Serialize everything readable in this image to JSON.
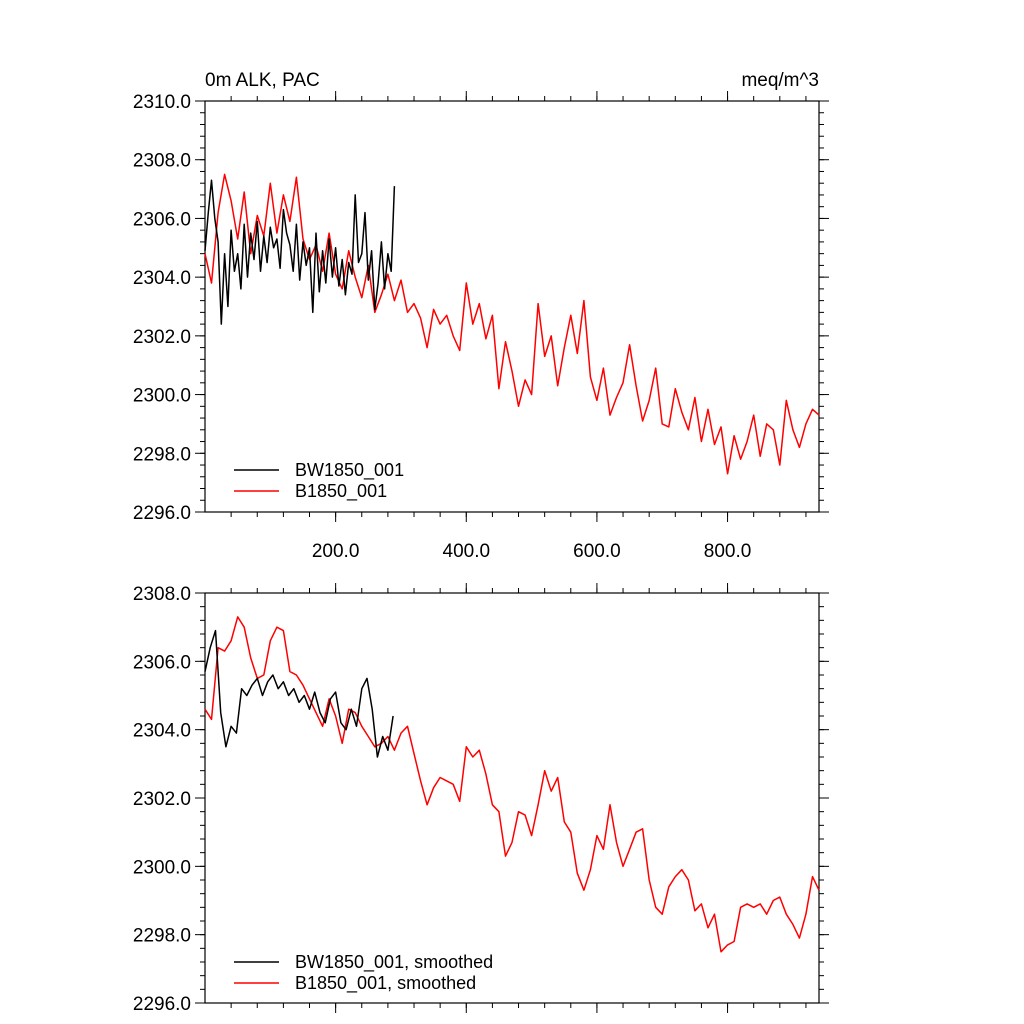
{
  "chart_data": [
    {
      "type": "line",
      "title": "0m ALK, PAC",
      "units": "meq/m^3",
      "xlim": [
        0,
        940
      ],
      "ylim": [
        2296.0,
        2310.0
      ],
      "x_ticks": [
        200,
        400,
        600,
        800
      ],
      "x_tick_labels": [
        "200.0",
        "400.0",
        "600.0",
        "800.0"
      ],
      "y_ticks": [
        2296,
        2298,
        2300,
        2302,
        2304,
        2306,
        2308,
        2310
      ],
      "y_tick_labels": [
        "2296.0",
        "2298.0",
        "2300.0",
        "2302.0",
        "2304.0",
        "2306.0",
        "2308.0",
        "2310.0"
      ],
      "legend_position": "bottom-left",
      "series": [
        {
          "name": "BW1850_001",
          "color": "#000000",
          "x": [
            0,
            5,
            10,
            15,
            20,
            25,
            30,
            35,
            40,
            45,
            50,
            55,
            60,
            65,
            70,
            75,
            80,
            85,
            90,
            95,
            100,
            105,
            110,
            115,
            120,
            125,
            130,
            135,
            140,
            145,
            150,
            155,
            160,
            165,
            170,
            175,
            180,
            185,
            190,
            195,
            200,
            205,
            210,
            215,
            220,
            225,
            230,
            235,
            240,
            245,
            250,
            255,
            260,
            265,
            270,
            275,
            280,
            285,
            290
          ],
          "values": [
            2304.9,
            2306.2,
            2307.3,
            2306.0,
            2305.2,
            2302.4,
            2304.8,
            2303.0,
            2305.6,
            2304.2,
            2304.8,
            2303.6,
            2305.8,
            2304.0,
            2305.5,
            2304.6,
            2305.9,
            2304.2,
            2305.4,
            2304.5,
            2305.7,
            2305.0,
            2305.3,
            2304.3,
            2306.3,
            2305.5,
            2305.1,
            2304.2,
            2305.8,
            2303.9,
            2305.2,
            2304.4,
            2305.0,
            2302.8,
            2305.5,
            2303.5,
            2304.9,
            2303.8,
            2305.3,
            2304.0,
            2305.0,
            2303.7,
            2304.6,
            2303.4,
            2304.5,
            2304.1,
            2306.8,
            2304.5,
            2304.8,
            2306.2,
            2303.9,
            2304.9,
            2302.9,
            2303.8,
            2305.2,
            2303.6,
            2304.8,
            2304.2,
            2307.1
          ]
        },
        {
          "name": "B1850_001",
          "color": "#ff0000",
          "x": [
            0,
            10,
            20,
            30,
            40,
            50,
            60,
            70,
            80,
            90,
            100,
            110,
            120,
            130,
            140,
            150,
            160,
            170,
            180,
            190,
            200,
            210,
            220,
            230,
            240,
            250,
            260,
            270,
            280,
            290,
            300,
            310,
            320,
            330,
            340,
            350,
            360,
            370,
            380,
            390,
            400,
            410,
            420,
            430,
            440,
            450,
            460,
            470,
            480,
            490,
            500,
            510,
            520,
            530,
            540,
            550,
            560,
            570,
            580,
            590,
            600,
            610,
            620,
            630,
            640,
            650,
            660,
            670,
            680,
            690,
            700,
            710,
            720,
            730,
            740,
            750,
            760,
            770,
            780,
            790,
            800,
            810,
            820,
            830,
            840,
            850,
            860,
            870,
            880,
            890,
            900,
            910,
            920,
            930,
            940
          ],
          "values": [
            2304.8,
            2303.8,
            2306.2,
            2307.5,
            2306.6,
            2305.3,
            2306.9,
            2304.8,
            2306.1,
            2305.4,
            2307.2,
            2305.5,
            2306.8,
            2305.9,
            2307.4,
            2305.3,
            2304.6,
            2305.1,
            2304.2,
            2305.5,
            2304.1,
            2303.6,
            2304.9,
            2304.0,
            2303.3,
            2304.4,
            2302.8,
            2303.4,
            2304.1,
            2303.2,
            2303.9,
            2302.8,
            2303.1,
            2302.6,
            2301.6,
            2302.9,
            2302.4,
            2302.7,
            2302.0,
            2301.5,
            2303.8,
            2302.4,
            2303.1,
            2301.9,
            2302.7,
            2300.2,
            2301.8,
            2300.8,
            2299.6,
            2300.5,
            2300.0,
            2303.1,
            2301.3,
            2302.0,
            2300.3,
            2301.6,
            2302.7,
            2301.4,
            2303.2,
            2300.6,
            2299.8,
            2300.9,
            2299.3,
            2299.9,
            2300.4,
            2301.7,
            2300.3,
            2299.1,
            2299.8,
            2300.9,
            2299.0,
            2298.9,
            2300.2,
            2299.4,
            2298.8,
            2299.9,
            2298.4,
            2299.5,
            2298.3,
            2298.9,
            2297.3,
            2298.6,
            2297.8,
            2298.4,
            2299.3,
            2297.9,
            2299.0,
            2298.8,
            2297.6,
            2299.8,
            2298.8,
            2298.2,
            2299.0,
            2299.5,
            2299.3
          ]
        }
      ]
    },
    {
      "type": "line",
      "xlim": [
        0,
        940
      ],
      "ylim": [
        2296.0,
        2308.0
      ],
      "y_ticks": [
        2296,
        2298,
        2300,
        2302,
        2304,
        2306,
        2308
      ],
      "y_tick_labels": [
        "2296.0",
        "2298.0",
        "2300.0",
        "2302.0",
        "2304.0",
        "2306.0",
        "2308.0"
      ],
      "legend_position": "bottom-left",
      "series": [
        {
          "name": "BW1850_001, smoothed",
          "color": "#000000",
          "x": [
            0,
            8,
            16,
            24,
            32,
            40,
            48,
            56,
            64,
            72,
            80,
            88,
            96,
            104,
            112,
            120,
            128,
            136,
            144,
            152,
            160,
            168,
            176,
            184,
            192,
            200,
            208,
            216,
            224,
            232,
            240,
            248,
            256,
            264,
            272,
            280,
            288
          ],
          "values": [
            2305.7,
            2306.4,
            2306.9,
            2304.5,
            2303.5,
            2304.1,
            2303.9,
            2305.2,
            2305.0,
            2305.3,
            2305.5,
            2305.0,
            2305.4,
            2305.6,
            2305.2,
            2305.4,
            2305.0,
            2305.2,
            2304.8,
            2305.0,
            2304.6,
            2305.1,
            2304.5,
            2304.2,
            2304.9,
            2305.1,
            2304.2,
            2304.0,
            2304.6,
            2304.1,
            2305.2,
            2305.5,
            2304.6,
            2303.2,
            2303.8,
            2303.4,
            2304.4
          ]
        },
        {
          "name": "B1850_001, smoothed",
          "color": "#ff0000",
          "x": [
            0,
            10,
            20,
            30,
            40,
            50,
            60,
            70,
            80,
            90,
            100,
            110,
            120,
            130,
            140,
            150,
            160,
            170,
            180,
            190,
            200,
            210,
            220,
            230,
            240,
            250,
            260,
            270,
            280,
            290,
            300,
            310,
            320,
            330,
            340,
            350,
            360,
            370,
            380,
            390,
            400,
            410,
            420,
            430,
            440,
            450,
            460,
            470,
            480,
            490,
            500,
            510,
            520,
            530,
            540,
            550,
            560,
            570,
            580,
            590,
            600,
            610,
            620,
            630,
            640,
            650,
            660,
            670,
            680,
            690,
            700,
            710,
            720,
            730,
            740,
            750,
            760,
            770,
            780,
            790,
            800,
            810,
            820,
            830,
            840,
            850,
            860,
            870,
            880,
            890,
            900,
            910,
            920,
            930,
            940
          ],
          "values": [
            2304.6,
            2304.3,
            2306.4,
            2306.3,
            2306.6,
            2307.3,
            2307.0,
            2306.1,
            2305.5,
            2305.6,
            2306.6,
            2307.0,
            2306.9,
            2305.7,
            2305.6,
            2305.3,
            2304.9,
            2304.5,
            2304.1,
            2304.9,
            2304.4,
            2303.6,
            2304.6,
            2304.5,
            2304.1,
            2303.8,
            2303.5,
            2303.6,
            2303.8,
            2303.4,
            2303.9,
            2304.1,
            2303.3,
            2302.5,
            2301.8,
            2302.3,
            2302.6,
            2302.5,
            2302.4,
            2301.9,
            2303.5,
            2303.2,
            2303.4,
            2302.7,
            2301.8,
            2301.6,
            2300.3,
            2300.7,
            2301.6,
            2301.5,
            2300.9,
            2301.8,
            2302.8,
            2302.2,
            2302.6,
            2301.3,
            2301.0,
            2299.8,
            2299.3,
            2299.9,
            2300.9,
            2300.5,
            2301.8,
            2300.7,
            2300.0,
            2300.5,
            2301.0,
            2301.1,
            2299.6,
            2298.8,
            2298.6,
            2299.4,
            2299.7,
            2299.9,
            2299.6,
            2298.7,
            2298.9,
            2298.2,
            2298.6,
            2297.5,
            2297.7,
            2297.8,
            2298.8,
            2298.9,
            2298.8,
            2298.9,
            2298.6,
            2299.0,
            2299.1,
            2298.6,
            2298.3,
            2297.9,
            2298.6,
            2299.7,
            2299.3
          ]
        }
      ]
    }
  ]
}
